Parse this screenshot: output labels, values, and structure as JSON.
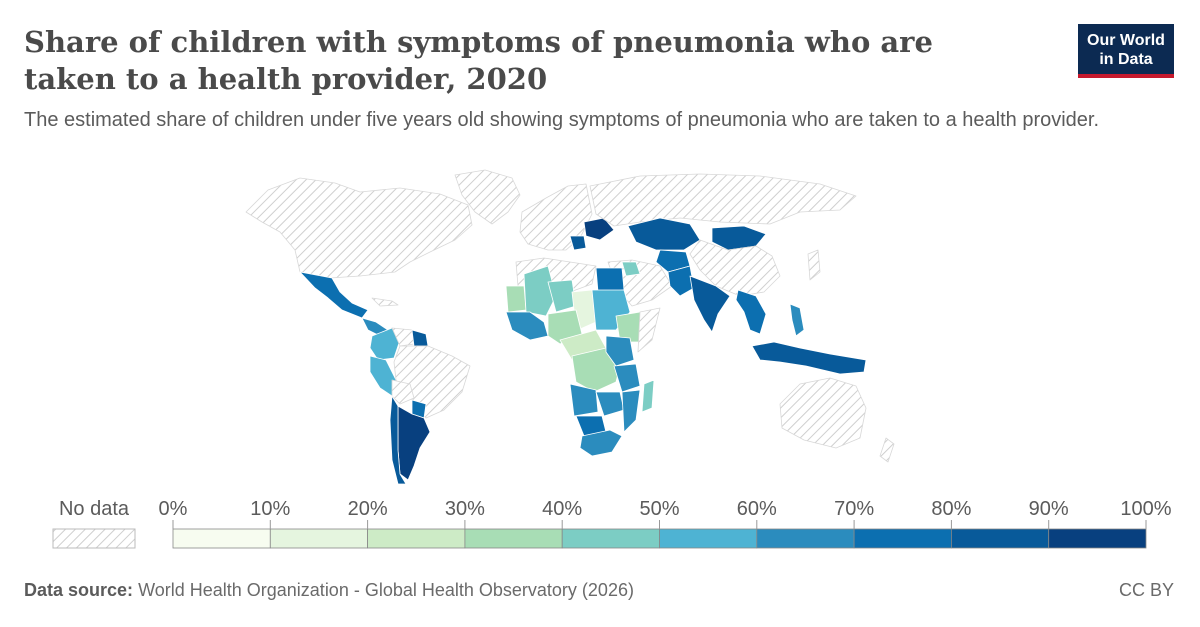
{
  "header": {
    "title": "Share of children with symptoms of pneumonia who are taken to a health provider, 2020",
    "subtitle": "The estimated share of children under five years old showing symptoms of pneumonia who are taken to a health provider."
  },
  "logo": {
    "line1": "Our World",
    "line2": "in Data"
  },
  "legend": {
    "no_data_label": "No data",
    "bins": [
      {
        "label": "0%",
        "color": "#f7fcf0"
      },
      {
        "label": "10%",
        "color": "#e5f5df"
      },
      {
        "label": "20%",
        "color": "#cdebc6"
      },
      {
        "label": "30%",
        "color": "#a8ddb5"
      },
      {
        "label": "40%",
        "color": "#7ccdc4"
      },
      {
        "label": "50%",
        "color": "#4eb3d3"
      },
      {
        "label": "60%",
        "color": "#2b8cbe"
      },
      {
        "label": "70%",
        "color": "#0c6fb0"
      },
      {
        "label": "80%",
        "color": "#085a9a"
      },
      {
        "label": "90%",
        "color": "#08407f"
      }
    ],
    "end_label": "100%"
  },
  "map": {
    "no_data_fill": "hatched",
    "regions": [
      {
        "name": "Greenland",
        "bin": "no data"
      },
      {
        "name": "North America",
        "bin": "no data"
      },
      {
        "name": "Mexico",
        "bin": "70%"
      },
      {
        "name": "Central America",
        "bin": "60%"
      },
      {
        "name": "Colombia",
        "bin": "50%"
      },
      {
        "name": "Venezuela",
        "bin": "no data"
      },
      {
        "name": "Guyana",
        "bin": "80%"
      },
      {
        "name": "Peru",
        "bin": "50%"
      },
      {
        "name": "Brazil",
        "bin": "no data"
      },
      {
        "name": "Bolivia",
        "bin": "no data"
      },
      {
        "name": "Paraguay",
        "bin": "70%"
      },
      {
        "name": "Argentina",
        "bin": "90%"
      },
      {
        "name": "Chile",
        "bin": "80%"
      },
      {
        "name": "Europe",
        "bin": "no data"
      },
      {
        "name": "Ukraine",
        "bin": "90%"
      },
      {
        "name": "Balkans",
        "bin": "80%"
      },
      {
        "name": "Russia",
        "bin": "no data"
      },
      {
        "name": "Kazakhstan",
        "bin": "80%"
      },
      {
        "name": "Mongolia",
        "bin": "80%"
      },
      {
        "name": "China",
        "bin": "no data"
      },
      {
        "name": "India",
        "bin": "80%"
      },
      {
        "name": "Pakistan",
        "bin": "70%"
      },
      {
        "name": "Middle East",
        "bin": "no data"
      },
      {
        "name": "Iraq",
        "bin": "40%"
      },
      {
        "name": "Southeast Asia",
        "bin": "70%"
      },
      {
        "name": "Indonesia",
        "bin": "80%"
      },
      {
        "name": "Australia",
        "bin": "no data"
      },
      {
        "name": "Mali",
        "bin": "40%"
      },
      {
        "name": "Mauritania",
        "bin": "30%"
      },
      {
        "name": "Niger",
        "bin": "40%"
      },
      {
        "name": "Chad",
        "bin": "10%"
      },
      {
        "name": "Nigeria",
        "bin": "30%"
      },
      {
        "name": "Sudan",
        "bin": "50%"
      },
      {
        "name": "Egypt",
        "bin": "70%"
      },
      {
        "name": "Ethiopia",
        "bin": "30%"
      },
      {
        "name": "DR Congo",
        "bin": "30%"
      },
      {
        "name": "Angola",
        "bin": "60%"
      },
      {
        "name": "Zambia",
        "bin": "60%"
      },
      {
        "name": "Tanzania",
        "bin": "60%"
      },
      {
        "name": "Mozambique",
        "bin": "60%"
      },
      {
        "name": "Madagascar",
        "bin": "40%"
      },
      {
        "name": "South Africa",
        "bin": "60%"
      }
    ]
  },
  "footer": {
    "source_label": "Data source:",
    "source_text": "World Health Organization - Global Health Observatory (2026)",
    "license": "CC BY"
  }
}
